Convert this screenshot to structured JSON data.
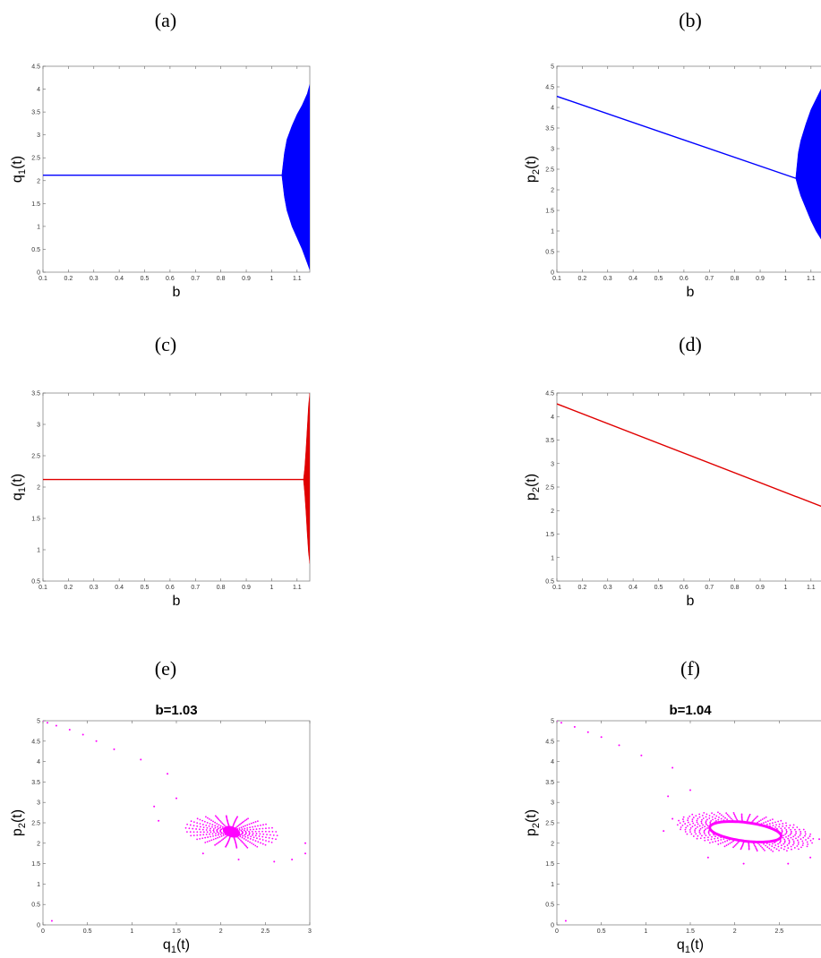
{
  "panel_labels": [
    "(a)",
    "(b)",
    "(c)",
    "(d)",
    "(e)",
    "(f)"
  ],
  "colors": {
    "blue": "#0000ff",
    "red": "#e00000",
    "magenta": "#ff00ff",
    "frame": "#888888"
  },
  "chart_data": [
    {
      "id": "a",
      "type": "area",
      "title": "",
      "xlabel": "b",
      "ylabel": "q",
      "ylabel_sub": "1",
      "ylabel_suffix": "(t)",
      "xlim": [
        0.1,
        1.15
      ],
      "ylim": [
        0,
        4.5
      ],
      "xticks": [
        "0.1",
        "0.2",
        "0.3",
        "0.4",
        "0.5",
        "0.6",
        "0.7",
        "0.8",
        "0.9",
        "1",
        "1.1"
      ],
      "yticks": [
        "0",
        "0.5",
        "1",
        "1.5",
        "2",
        "2.5",
        "3",
        "3.5",
        "4",
        "4.5"
      ],
      "color": "blue",
      "steady_line": {
        "x": [
          0.1,
          1.04
        ],
        "y": [
          2.12,
          2.12
        ]
      },
      "envelope": {
        "x": [
          1.04,
          1.05,
          1.06,
          1.08,
          1.1,
          1.12,
          1.14,
          1.15
        ],
        "upper": [
          2.12,
          2.6,
          2.9,
          3.2,
          3.45,
          3.65,
          3.9,
          4.1
        ],
        "lower": [
          2.12,
          1.65,
          1.35,
          1.0,
          0.75,
          0.5,
          0.2,
          0.05
        ]
      }
    },
    {
      "id": "b",
      "type": "area",
      "title": "",
      "xlabel": "b",
      "ylabel": "p",
      "ylabel_sub": "2",
      "ylabel_suffix": "(t)",
      "xlim": [
        0.1,
        1.15
      ],
      "ylim": [
        0,
        5
      ],
      "xticks": [
        "0.1",
        "0.2",
        "0.3",
        "0.4",
        "0.5",
        "0.6",
        "0.7",
        "0.8",
        "0.9",
        "1",
        "1.1"
      ],
      "yticks": [
        "0",
        "0.5",
        "1",
        "1.5",
        "2",
        "2.5",
        "3",
        "3.5",
        "4",
        "4.5",
        "5"
      ],
      "color": "blue",
      "steady_line": {
        "x": [
          0.1,
          1.04
        ],
        "y": [
          4.27,
          2.28
        ]
      },
      "envelope": {
        "x": [
          1.04,
          1.05,
          1.06,
          1.08,
          1.1,
          1.12,
          1.14,
          1.15
        ],
        "upper": [
          2.28,
          2.9,
          3.2,
          3.6,
          3.95,
          4.2,
          4.45,
          4.6
        ],
        "lower": [
          2.28,
          2.05,
          1.85,
          1.55,
          1.25,
          1.0,
          0.8,
          0.7
        ]
      }
    },
    {
      "id": "c",
      "type": "area",
      "title": "",
      "xlabel": "b",
      "ylabel": "q",
      "ylabel_sub": "1",
      "ylabel_suffix": "(t)",
      "xlim": [
        0.1,
        1.15
      ],
      "ylim": [
        0.5,
        3.5
      ],
      "xticks": [
        "0.1",
        "0.2",
        "0.3",
        "0.4",
        "0.5",
        "0.6",
        "0.7",
        "0.8",
        "0.9",
        "1",
        "1.1"
      ],
      "yticks": [
        "0.5",
        "1",
        "1.5",
        "2",
        "2.5",
        "3",
        "3.5"
      ],
      "color": "red",
      "steady_line": {
        "x": [
          0.1,
          1.125
        ],
        "y": [
          2.12,
          2.12
        ]
      },
      "envelope": {
        "x": [
          1.125,
          1.13,
          1.135,
          1.14,
          1.145,
          1.15
        ],
        "upper": [
          2.12,
          2.3,
          2.6,
          2.95,
          3.3,
          3.5
        ],
        "lower": [
          2.12,
          1.9,
          1.6,
          1.25,
          0.95,
          0.78
        ]
      }
    },
    {
      "id": "d",
      "type": "line",
      "title": "",
      "xlabel": "b",
      "ylabel": "p",
      "ylabel_sub": "2",
      "ylabel_suffix": "(t)",
      "xlim": [
        0.1,
        1.15
      ],
      "ylim": [
        0.5,
        4.5
      ],
      "xticks": [
        "0.1",
        "0.2",
        "0.3",
        "0.4",
        "0.5",
        "0.6",
        "0.7",
        "0.8",
        "0.9",
        "1",
        "1.1"
      ],
      "yticks": [
        "0.5",
        "1",
        "1.5",
        "2",
        "2.5",
        "3",
        "3.5",
        "4",
        "4.5"
      ],
      "color": "red",
      "steady_line": {
        "x": [
          0.1,
          1.15
        ],
        "y": [
          4.27,
          2.07
        ]
      },
      "envelope": null
    },
    {
      "id": "e",
      "type": "scatter",
      "title": "b=1.03",
      "xlabel": "q",
      "xlabel_sub": "1",
      "xlabel_suffix": "(t)",
      "ylabel": "p",
      "ylabel_sub": "2",
      "ylabel_suffix": "(t)",
      "xlim": [
        0,
        3
      ],
      "ylim": [
        0,
        5
      ],
      "xticks": [
        "0",
        "0.5",
        "1",
        "1.5",
        "2",
        "2.5",
        "3"
      ],
      "yticks": [
        "0",
        "0.5",
        "1",
        "1.5",
        "2",
        "2.5",
        "3",
        "3.5",
        "4",
        "4.5",
        "5"
      ],
      "color": "magenta",
      "spiral": {
        "center": [
          2.12,
          2.28
        ],
        "rx": 0.2,
        "ry": 0.14,
        "tilt_deg": -20,
        "arms": 26,
        "limit_cycle": false
      },
      "sparse_points": [
        [
          0,
          5
        ],
        [
          0.05,
          4.95
        ],
        [
          0.15,
          4.88
        ],
        [
          0.3,
          4.78
        ],
        [
          0.45,
          4.66
        ],
        [
          0.6,
          4.5
        ],
        [
          0.8,
          4.3
        ],
        [
          1.1,
          4.05
        ],
        [
          1.4,
          3.7
        ],
        [
          0.1,
          0.1
        ],
        [
          1.3,
          2.55
        ],
        [
          1.25,
          2.9
        ],
        [
          1.8,
          1.75
        ],
        [
          2.2,
          1.6
        ],
        [
          2.6,
          1.55
        ],
        [
          2.8,
          1.6
        ],
        [
          2.95,
          1.75
        ],
        [
          2.95,
          2.0
        ],
        [
          1.5,
          3.1
        ]
      ]
    },
    {
      "id": "f",
      "type": "scatter",
      "title": "b=1.04",
      "xlabel": "q",
      "xlabel_sub": "1",
      "xlabel_suffix": "(t)",
      "ylabel": "p",
      "ylabel_sub": "2",
      "ylabel_suffix": "(t)",
      "xlim": [
        0,
        3
      ],
      "ylim": [
        0,
        5
      ],
      "xticks": [
        "0",
        "0.5",
        "1",
        "1.5",
        "2",
        "2.5"
      ],
      "yticks": [
        "0",
        "0.5",
        "1",
        "1.5",
        "2",
        "2.5",
        "3",
        "3.5",
        "4",
        "4.5",
        "5"
      ],
      "color": "magenta",
      "spiral": {
        "center": [
          2.12,
          2.28
        ],
        "rx": 0.42,
        "ry": 0.22,
        "tilt_deg": -20,
        "arms": 26,
        "limit_cycle": true
      },
      "sparse_points": [
        [
          0,
          5
        ],
        [
          0.05,
          4.95
        ],
        [
          0.2,
          4.85
        ],
        [
          0.35,
          4.72
        ],
        [
          0.5,
          4.6
        ],
        [
          0.7,
          4.4
        ],
        [
          0.95,
          4.15
        ],
        [
          1.3,
          3.85
        ],
        [
          0.1,
          0.1
        ],
        [
          1.25,
          3.15
        ],
        [
          1.3,
          2.6
        ],
        [
          1.5,
          3.3
        ],
        [
          1.7,
          1.65
        ],
        [
          2.1,
          1.5
        ],
        [
          2.6,
          1.5
        ],
        [
          2.85,
          1.65
        ],
        [
          2.95,
          2.1
        ],
        [
          1.2,
          2.3
        ]
      ]
    }
  ]
}
